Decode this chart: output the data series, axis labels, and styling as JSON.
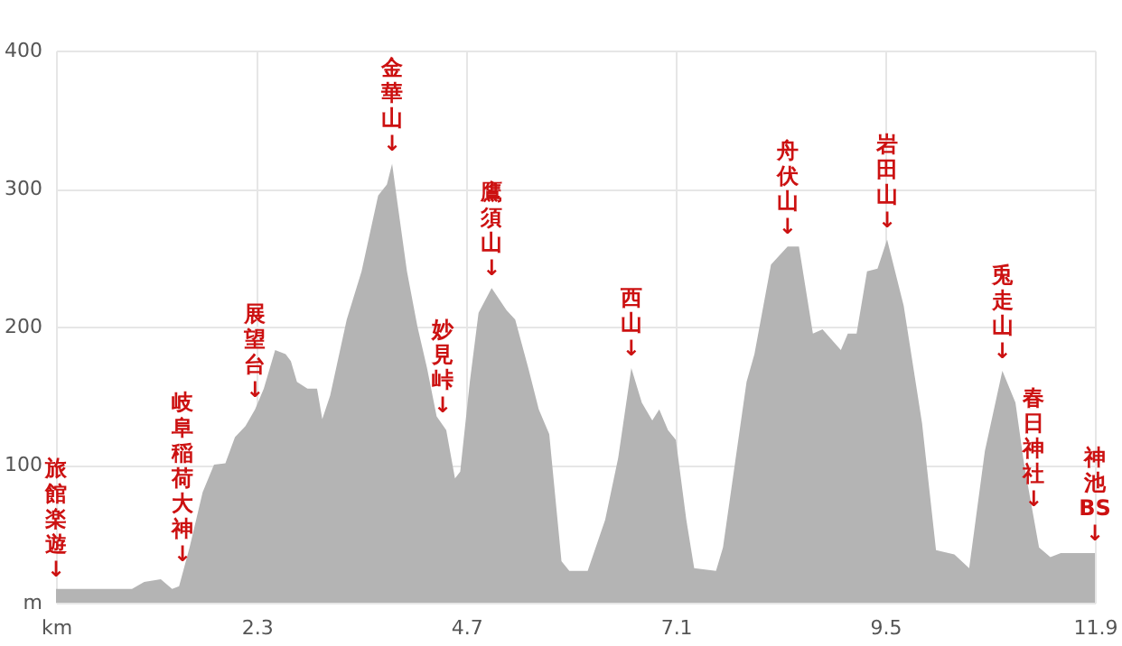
{
  "chart_data": {
    "type": "area",
    "x": [
      0,
      0.87,
      1.01,
      1.2,
      1.33,
      1.41,
      1.53,
      1.68,
      1.81,
      1.94,
      2.05,
      2.17,
      2.28,
      2.38,
      2.51,
      2.63,
      2.69,
      2.76,
      2.88,
      2.99,
      3.05,
      3.14,
      3.33,
      3.5,
      3.69,
      3.79,
      3.85,
      3.91,
      4.02,
      4.14,
      4.25,
      4.36,
      4.47,
      4.57,
      4.63,
      4.74,
      4.84,
      4.99,
      5.16,
      5.26,
      5.41,
      5.53,
      5.65,
      5.79,
      5.88,
      6.09,
      6.29,
      6.44,
      6.59,
      6.71,
      6.83,
      6.91,
      7.01,
      7.1,
      7.22,
      7.31,
      7.56,
      7.64,
      7.91,
      8.0,
      8.19,
      8.38,
      8.51,
      8.67,
      8.78,
      8.99,
      9.07,
      9.17,
      9.29,
      9.41,
      9.52,
      9.71,
      9.92,
      10.08,
      10.29,
      10.46,
      10.64,
      10.84,
      10.99,
      11.09,
      11.26,
      11.39,
      11.51,
      11.9
    ],
    "series": [
      {
        "color": "#b4b4b4",
        "values": [
          10,
          10,
          15,
          17,
          10,
          12,
          40,
          80,
          100,
          101,
          120,
          128,
          140,
          155,
          183,
          180,
          175,
          160,
          155,
          155,
          133,
          150,
          205,
          240,
          295,
          303,
          318,
          290,
          240,
          200,
          170,
          135,
          125,
          90,
          95,
          160,
          210,
          228,
          212,
          205,
          170,
          140,
          122,
          30,
          23,
          23,
          60,
          105,
          170,
          145,
          132,
          140,
          125,
          118,
          60,
          25,
          23,
          40,
          160,
          180,
          245,
          258,
          258,
          195,
          198,
          183,
          195,
          195,
          240,
          242,
          263,
          215,
          130,
          38,
          35,
          25,
          110,
          168,
          145,
          100,
          40,
          33,
          36,
          36
        ]
      }
    ],
    "xlim": [
      0,
      11.9
    ],
    "ylim": [
      0,
      400
    ],
    "xticks": [
      {
        "value": 0,
        "label": "km"
      },
      2.3,
      4.7,
      7.1,
      9.5,
      11.9
    ],
    "yticks": [
      {
        "value": 0,
        "label": "m"
      },
      100,
      200,
      300,
      400
    ],
    "grid": true,
    "annotations": [
      {
        "text": "旅館楽遊↓",
        "x": 0,
        "y": 10
      },
      {
        "text": "岐阜稲荷大神↓",
        "x": 1.45,
        "y": 21
      },
      {
        "text": "展望台↓",
        "x": 2.28,
        "y": 140
      },
      {
        "text": "金華山↓",
        "x": 3.85,
        "y": 318
      },
      {
        "text": "妙見峠↓",
        "x": 4.43,
        "y": 129
      },
      {
        "text": "鷹須山↓",
        "x": 4.99,
        "y": 228
      },
      {
        "text": "西山↓",
        "x": 6.59,
        "y": 170
      },
      {
        "text": "舟伏山↓",
        "x": 8.38,
        "y": 258
      },
      {
        "text": "岩田山↓",
        "x": 9.52,
        "y": 263
      },
      {
        "text": "兎走山↓",
        "x": 10.84,
        "y": 168
      },
      {
        "text": "春日神社↓",
        "x": 11.2,
        "y": 61
      },
      {
        "text": "神池BS↓",
        "x": 11.9,
        "y": 36
      }
    ]
  }
}
